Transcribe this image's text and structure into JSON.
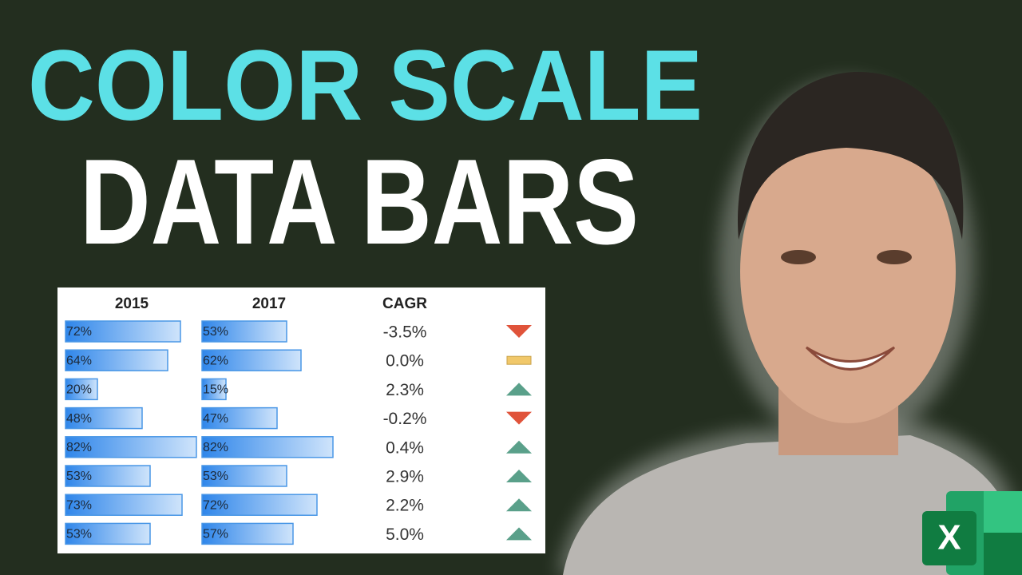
{
  "title": {
    "line1": "COLOR SCALE",
    "line2": "DATA BARS"
  },
  "table": {
    "headers": [
      "2015",
      "2017",
      "CAGR"
    ],
    "rows": [
      {
        "values": [
          72,
          53,
          -3.5
        ],
        "labels": [
          "72%",
          "53%",
          "-3.5%"
        ]
      },
      {
        "values": [
          64,
          62,
          0.0
        ],
        "labels": [
          "64%",
          "62%",
          "0.0%"
        ]
      },
      {
        "values": [
          20,
          15,
          2.3
        ],
        "labels": [
          "20%",
          "15%",
          "2.3%"
        ]
      },
      {
        "values": [
          48,
          47,
          -0.2
        ],
        "labels": [
          "48%",
          "47%",
          "-0.2%"
        ]
      },
      {
        "values": [
          82,
          82,
          0.4
        ],
        "labels": [
          "82%",
          "82%",
          "0.4%"
        ]
      },
      {
        "values": [
          53,
          53,
          2.9
        ],
        "labels": [
          "53%",
          "53%",
          "2.9%"
        ]
      },
      {
        "values": [
          73,
          72,
          2.2
        ],
        "labels": [
          "73%",
          "72%",
          "2.2%"
        ]
      },
      {
        "values": [
          53,
          57,
          5.0
        ],
        "labels": [
          "53%",
          "57%",
          "5.0%"
        ]
      }
    ]
  },
  "logo": "X"
}
